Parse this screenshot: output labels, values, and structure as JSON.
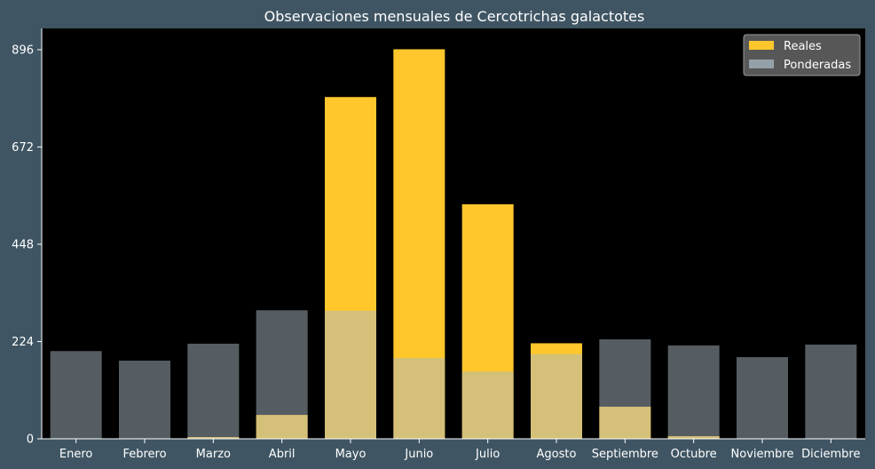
{
  "colors": {
    "figure_bg": "#3f5563",
    "plot_bg": "#000000",
    "real": "#ffc72c",
    "weighted": "#a9b9c4",
    "text": "#ffffff",
    "legend_bg": "#575757",
    "legend_border": "#9a9a9a"
  },
  "chart_data": {
    "type": "bar",
    "title": "Observaciones mensuales de Cercotrichas galactotes",
    "xlabel": "",
    "ylabel": "",
    "categories": [
      "Enero",
      "Febrero",
      "Marzo",
      "Abril",
      "Mayo",
      "Junio",
      "Julio",
      "Agosto",
      "Septiembre",
      "Octubre",
      "Noviembre",
      "Diciembre"
    ],
    "series": [
      {
        "name": "Reales",
        "color": "#ffc72c",
        "opacity": 1.0,
        "values": [
          0,
          0,
          4,
          55,
          787,
          897,
          540,
          220,
          74,
          6,
          0,
          0
        ]
      },
      {
        "name": "Ponderadas",
        "color": "#a9b9c4",
        "opacity": 0.5,
        "values": [
          202,
          180,
          219,
          296,
          295,
          186,
          155,
          195,
          229,
          215,
          188,
          217
        ]
      }
    ],
    "ylim": [
      0,
      945
    ],
    "yticks": [
      0,
      224,
      448,
      672,
      896
    ],
    "legend": {
      "position": "top-right"
    },
    "grid": false
  }
}
